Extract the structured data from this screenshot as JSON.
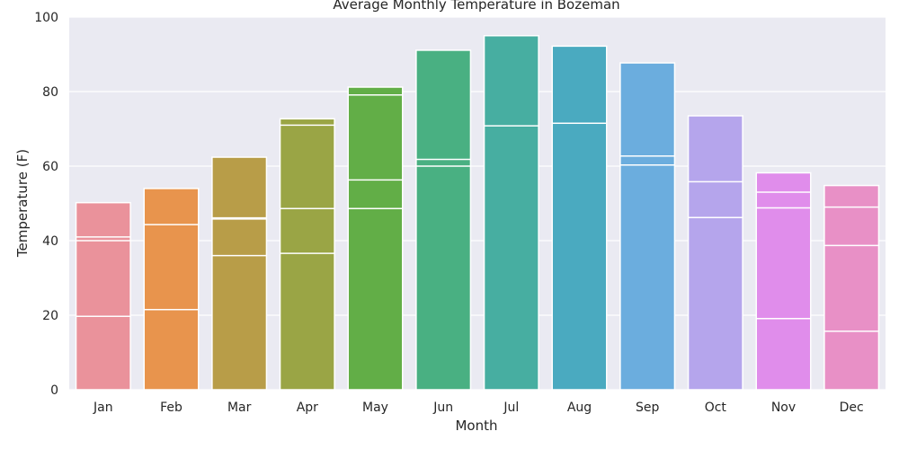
{
  "chart_data": {
    "type": "bar",
    "title": "Average Monthly Temperature in Bozeman",
    "xlabel": "Month",
    "ylabel": "Temperature (F)",
    "ylim": [
      0,
      100
    ],
    "yticks": [
      0,
      20,
      40,
      60,
      80,
      100
    ],
    "grid": true,
    "categories": [
      "Jan",
      "Feb",
      "Mar",
      "Apr",
      "May",
      "Jun",
      "Jul",
      "Aug",
      "Sep",
      "Oct",
      "Nov",
      "Dec"
    ],
    "values": [
      50.2,
      54.0,
      62.4,
      72.7,
      81.2,
      91.1,
      95.0,
      92.2,
      87.7,
      73.5,
      58.2,
      54.8
    ],
    "segment_lines": [
      [
        41.0,
        40.0,
        19.7
      ],
      [
        44.3,
        21.5
      ],
      [
        46.1,
        45.8,
        36.0
      ],
      [
        71.0,
        48.6,
        36.6
      ],
      [
        79.1,
        56.3,
        48.6
      ],
      [
        61.8,
        60.0
      ],
      [
        70.8
      ],
      [
        71.5
      ],
      [
        62.7,
        60.3
      ],
      [
        55.8,
        46.2
      ],
      [
        53.0,
        48.8,
        19.1
      ],
      [
        49.0,
        38.7,
        15.7
      ]
    ],
    "colors": [
      "#ea929b",
      "#e8944d",
      "#b89d48",
      "#9aa545",
      "#62ae47",
      "#49b082",
      "#47aea1",
      "#4aaac0",
      "#6badde",
      "#b5a5ec",
      "#e08deb",
      "#e890c6"
    ],
    "background": "#eaeaf2",
    "gridline_color": "#ffffff"
  }
}
